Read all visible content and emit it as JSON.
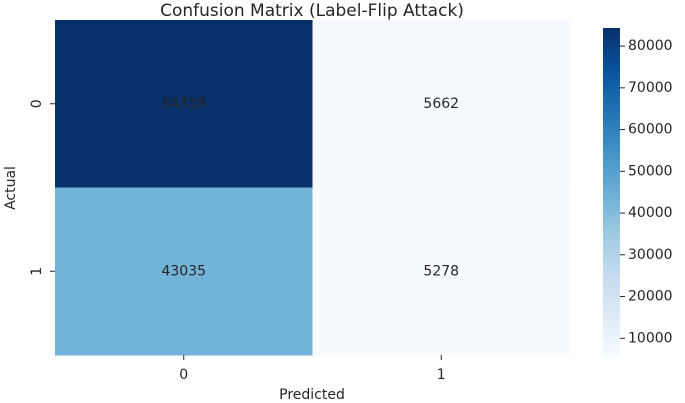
{
  "chart_data": {
    "type": "heatmap",
    "title": "Confusion Matrix (Label-Flip Attack)",
    "xlabel": "Predicted",
    "ylabel": "Actual",
    "x_categories": [
      "0",
      "1"
    ],
    "y_categories": [
      "0",
      "1"
    ],
    "values": [
      [
        84338,
        5662
      ],
      [
        43035,
        5278
      ]
    ],
    "colormap": "Blues",
    "colorbar_lim": [
      5278,
      84338
    ],
    "colorbar_ticks": [
      10000,
      20000,
      30000,
      40000,
      50000,
      60000,
      70000,
      80000
    ]
  }
}
